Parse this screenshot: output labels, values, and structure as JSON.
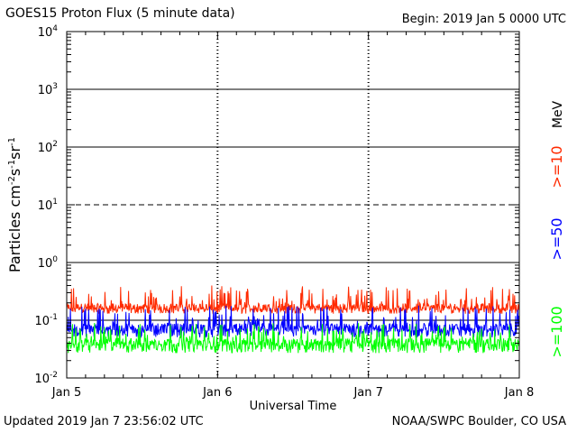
{
  "header": {
    "title": "GOES15 Proton Flux (5 minute data)",
    "begin": "Begin: 2019 Jan 5 0000 UTC"
  },
  "footer": {
    "updated": "Updated 2019 Jan  7 23:56:02 UTC",
    "credit": "NOAA/SWPC Boulder, CO USA"
  },
  "chart_data": {
    "type": "line",
    "title": "GOES15 Proton Flux (5 minute data)",
    "xlabel": "Universal Time",
    "ylabel": "Particles cm-2s-1sr-1",
    "y_scale": "log",
    "ylim": [
      0.01,
      10000
    ],
    "xlim": [
      "2019-01-05",
      "2019-01-08"
    ],
    "x_ticks": [
      "Jan 5",
      "Jan 6",
      "Jan 7",
      "Jan 8"
    ],
    "y_ticks": [
      {
        "base": "10",
        "exp": "4"
      },
      {
        "base": "10",
        "exp": "3"
      },
      {
        "base": "10",
        "exp": "2"
      },
      {
        "base": "10",
        "exp": "1"
      },
      {
        "base": "10",
        "exp": "0"
      },
      {
        "base": "10",
        "exp": "-1"
      },
      {
        "base": "10",
        "exp": "-2"
      }
    ],
    "units_label": "MeV",
    "grid": true,
    "series": [
      {
        "name": ">=10",
        "color": "#ff2a00",
        "baseline": 0.17,
        "low": 0.13,
        "high": 0.4
      },
      {
        "name": ">=50",
        "color": "#0000ff",
        "baseline": 0.075,
        "low": 0.05,
        "high": 0.18
      },
      {
        "name": ">=100",
        "color": "#00ff00",
        "baseline": 0.042,
        "low": 0.027,
        "high": 0.09
      }
    ]
  }
}
